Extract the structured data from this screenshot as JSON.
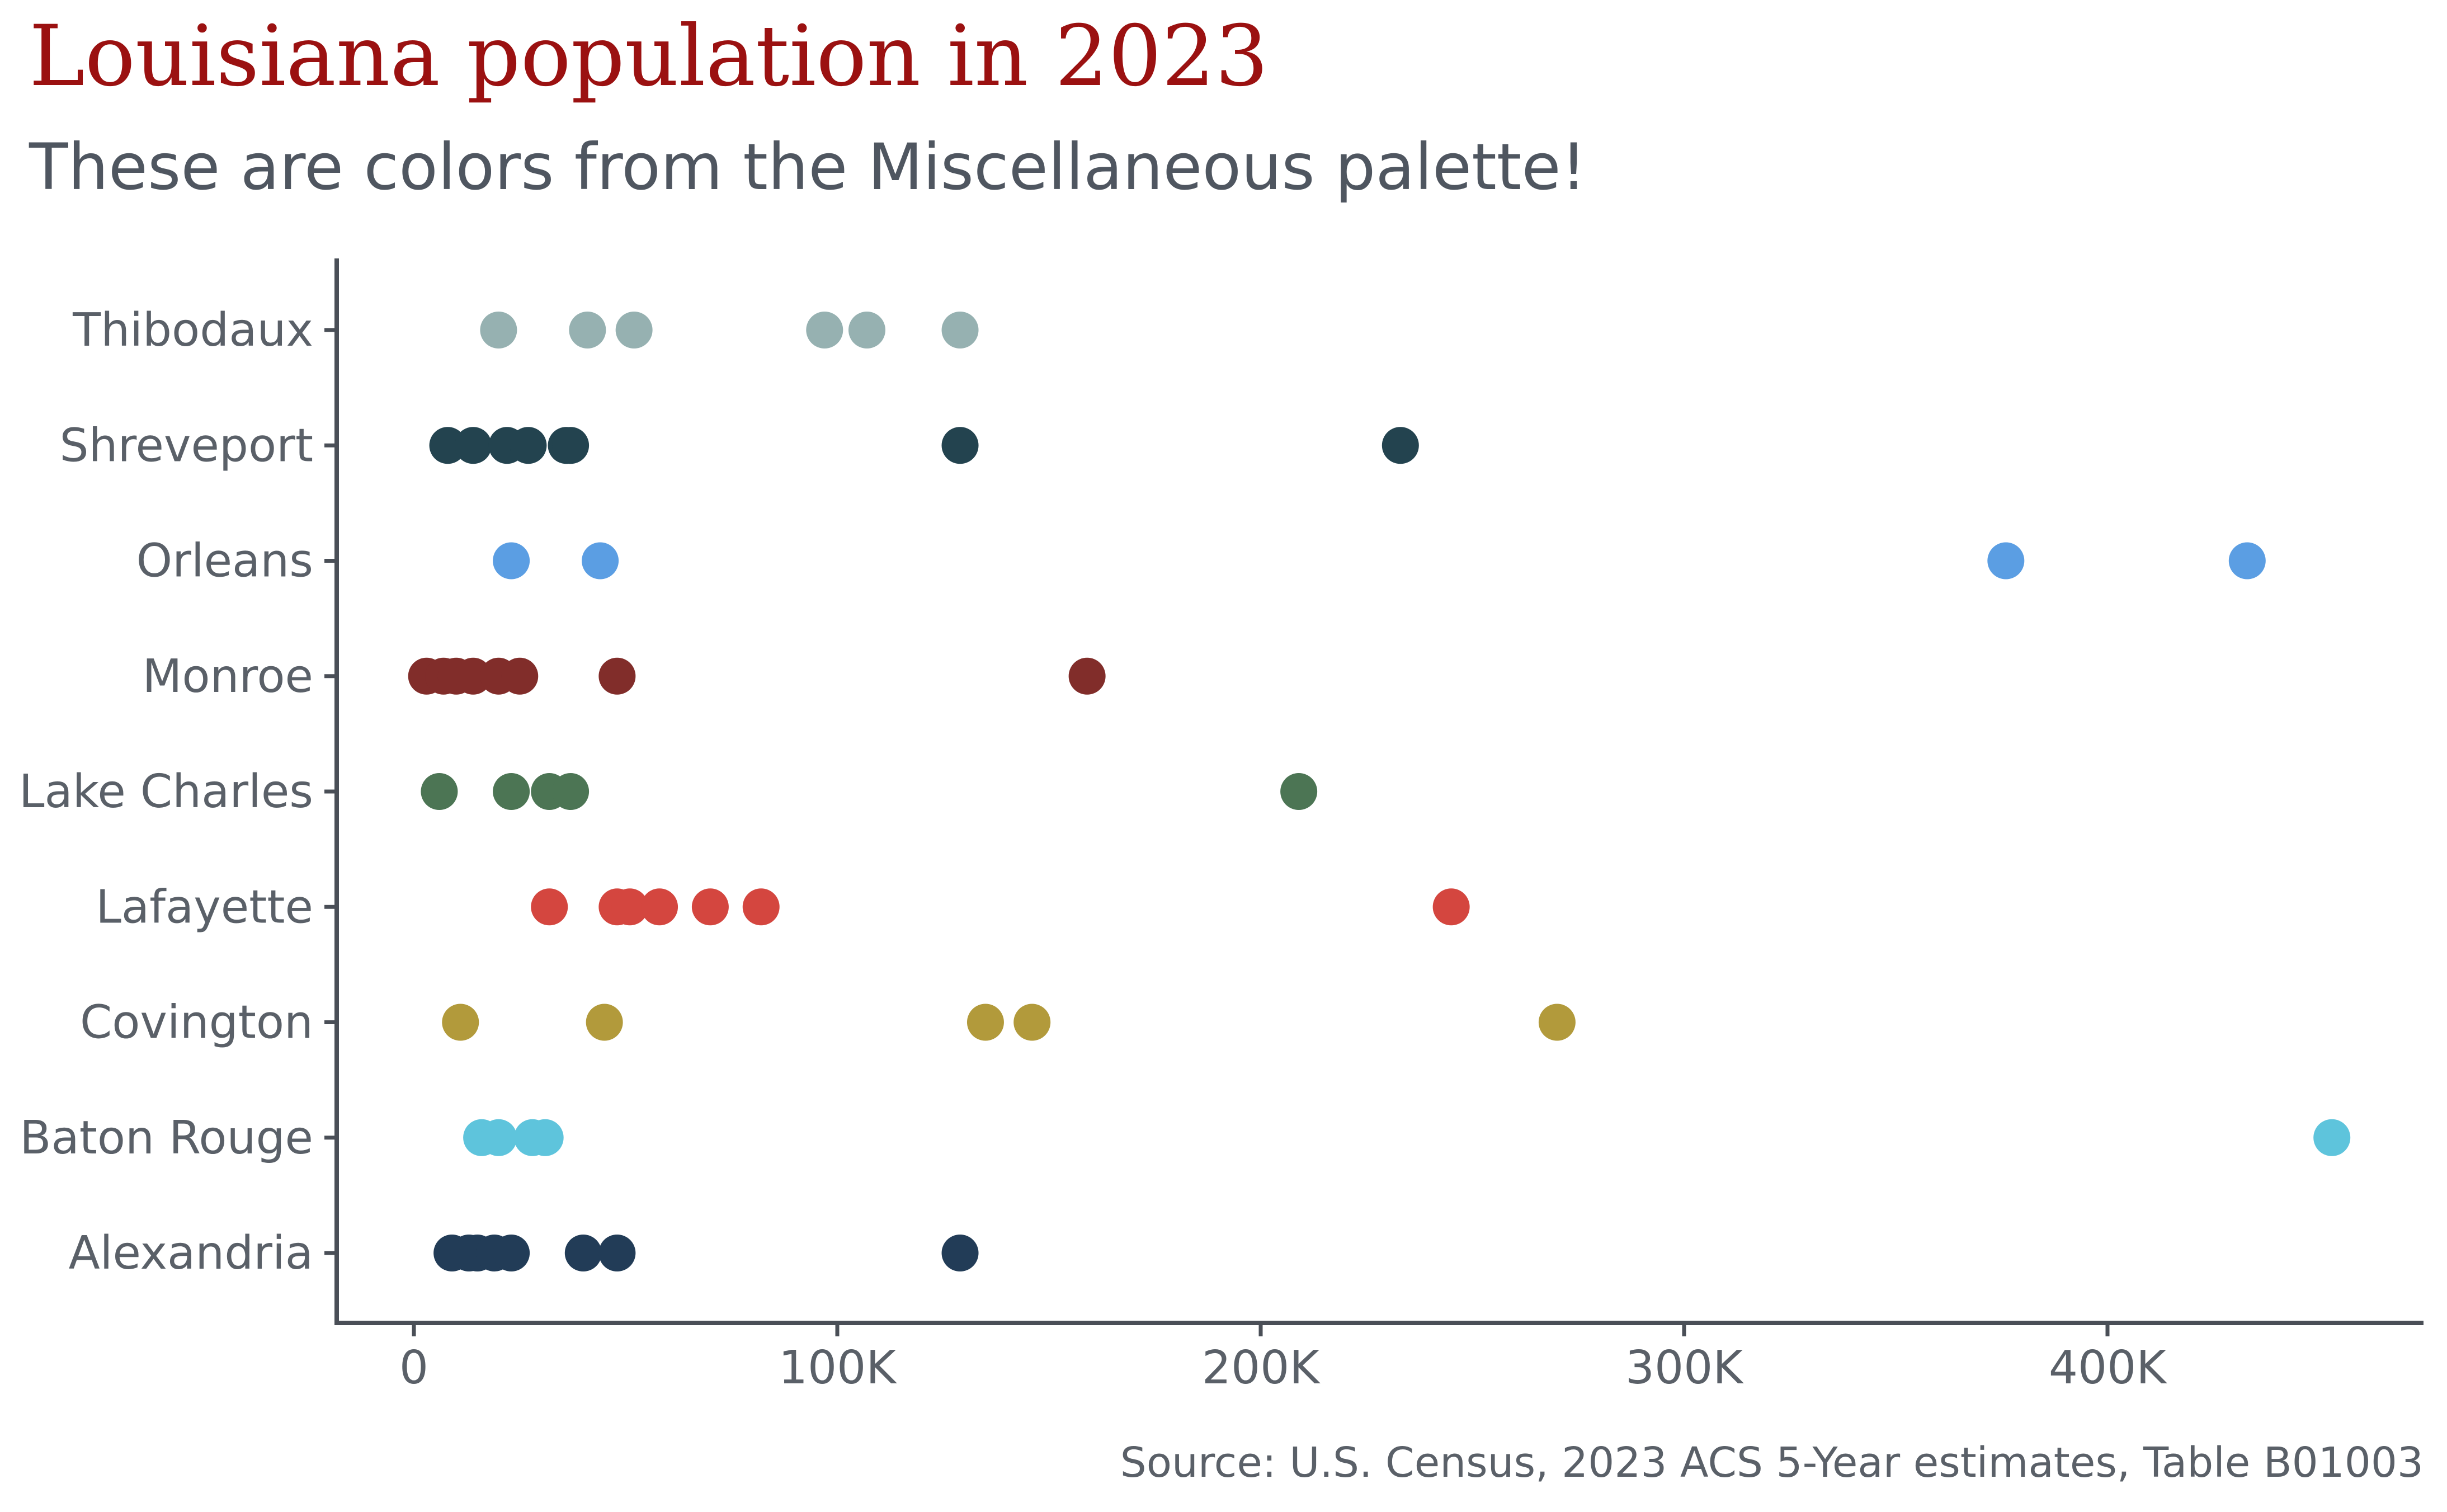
{
  "chart_data": {
    "type": "scatter",
    "title": "Louisiana population in 2023",
    "subtitle": "These are colors from the Miscellaneous palette!",
    "caption": "Source: U.S. Census, 2023 ACS 5-Year estimates, Table B01003",
    "xlabel": "",
    "ylabel": "",
    "xlim": [
      -18000,
      475000
    ],
    "x_ticks": [
      0,
      100000,
      200000,
      300000,
      400000
    ],
    "x_tick_labels": [
      "0",
      "100K",
      "200K",
      "300K",
      "400K"
    ],
    "categories": [
      "Alexandria",
      "Baton Rouge",
      "Covington",
      "Lafayette",
      "Lake Charles",
      "Monroe",
      "Orleans",
      "Shreveport",
      "Thibodaux"
    ],
    "grid": false,
    "legend": "none",
    "series": [
      {
        "category": "Thibodaux",
        "color": "#96b1b1",
        "values": [
          20000,
          41000,
          52000,
          97000,
          107000,
          129000
        ]
      },
      {
        "category": "Shreveport",
        "color": "#23434f",
        "values": [
          8000,
          14000,
          22000,
          27000,
          36000,
          37000,
          129000,
          233000
        ]
      },
      {
        "category": "Orleans",
        "color": "#5b9ee3",
        "values": [
          23000,
          44000,
          376000,
          433000
        ]
      },
      {
        "category": "Monroe",
        "color": "#812d2a",
        "values": [
          3000,
          7000,
          10000,
          14000,
          20000,
          25000,
          48000,
          159000
        ]
      },
      {
        "category": "Lake Charles",
        "color": "#4c7554",
        "values": [
          6000,
          23000,
          32000,
          37000,
          209000
        ]
      },
      {
        "category": "Lafayette",
        "color": "#d4463f",
        "values": [
          32000,
          48000,
          51000,
          58000,
          70000,
          82000,
          245000
        ]
      },
      {
        "category": "Covington",
        "color": "#b29a3b",
        "values": [
          11000,
          45000,
          135000,
          146000,
          270000
        ]
      },
      {
        "category": "Baton Rouge",
        "color": "#5ec4dc",
        "values": [
          16000,
          20000,
          28000,
          31000,
          453000
        ]
      },
      {
        "category": "Alexandria",
        "color": "#223c57",
        "values": [
          9000,
          13000,
          15000,
          19000,
          23000,
          40000,
          48000,
          129000
        ]
      }
    ]
  }
}
